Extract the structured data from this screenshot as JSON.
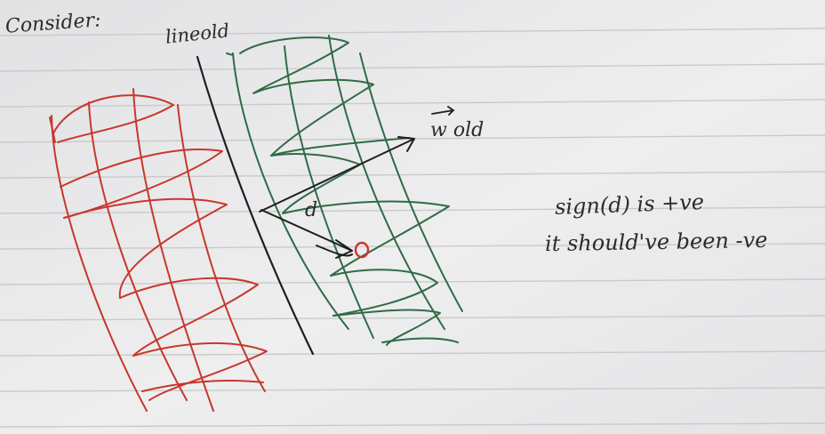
{
  "note": {
    "heading": "Consider:",
    "line_label": "lineold",
    "vector_label": "w old",
    "distance_label": "d",
    "observation_line1": "sign(d) is +ve",
    "observation_line2": "it should've been -ve"
  },
  "colors": {
    "paper": "#e9e9ea",
    "rule_lines": "#c9cacc",
    "ink_black": "#1e1e22",
    "ink_red": "#c8372d",
    "ink_green": "#2f6b45"
  }
}
